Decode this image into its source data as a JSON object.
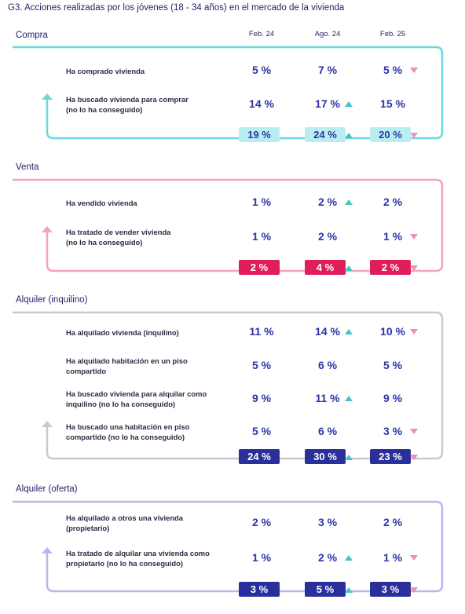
{
  "title": "G3. Acciones realizadas por los jóvenes (18 - 34 años) en el mercado de la vivienda",
  "colors": {
    "compra": "#6fd7da",
    "venta": "#f2a3bd",
    "inquilino": "#c9c9d2",
    "oferta": "#b8b8eb",
    "up_arrow": "#45c4c8",
    "down_arrow": "#ef8fb4",
    "value_text": "#2e33a8"
  },
  "chart_data": {
    "type": "table",
    "columns": [
      "Feb. 24",
      "Ago. 24",
      "Feb. 25"
    ],
    "sections": [
      {
        "title": "Compra",
        "rows": [
          {
            "label_lines": [
              "Ha comprado vivienda"
            ],
            "values": [
              "5 %",
              "7 %",
              "5 %"
            ],
            "trend": [
              "",
              "",
              "down"
            ]
          },
          {
            "label_lines": [
              "Ha buscado vivienda para comprar",
              "(no lo ha conseguido)"
            ],
            "values": [
              "14 %",
              "17 %",
              "15 %"
            ],
            "trend": [
              "",
              "up",
              ""
            ]
          }
        ],
        "totals": [
          "19 %",
          "24 %",
          "20 %"
        ],
        "total_trend": [
          "",
          "up",
          "down"
        ]
      },
      {
        "title": "Venta",
        "rows": [
          {
            "label_lines": [
              "Ha vendido vivienda"
            ],
            "values": [
              "1 %",
              "2 %",
              "2 %"
            ],
            "trend": [
              "",
              "up",
              ""
            ]
          },
          {
            "label_lines": [
              "Ha tratado de vender vivienda",
              "(no lo ha conseguido)"
            ],
            "values": [
              "1 %",
              "2 %",
              "1 %"
            ],
            "trend": [
              "",
              "",
              "down"
            ]
          }
        ],
        "totals": [
          "2 %",
          "4 %",
          "2 %"
        ],
        "total_trend": [
          "",
          "up",
          "down"
        ]
      },
      {
        "title": "Alquiler (inquilino)",
        "rows": [
          {
            "label_lines": [
              "Ha alquilado vivienda (inquilino)"
            ],
            "values": [
              "11 %",
              "14 %",
              "10 %"
            ],
            "trend": [
              "",
              "up",
              "down"
            ]
          },
          {
            "label_lines": [
              "Ha alquilado habitación en un piso",
              "compartido"
            ],
            "values": [
              "5 %",
              "6 %",
              "5 %"
            ],
            "trend": [
              "",
              "",
              ""
            ]
          },
          {
            "label_lines": [
              "Ha buscado vivienda para alquilar como",
              "inquilino (no lo ha conseguido)"
            ],
            "values": [
              "9 %",
              "11 %",
              "9 %"
            ],
            "trend": [
              "",
              "up",
              ""
            ]
          },
          {
            "label_lines": [
              "Ha buscado una habitación en piso",
              "compartido (no lo ha conseguido)"
            ],
            "values": [
              "5 %",
              "6 %",
              "3 %"
            ],
            "trend": [
              "",
              "",
              "down"
            ]
          }
        ],
        "totals": [
          "24 %",
          "30 %",
          "23 %"
        ],
        "total_trend": [
          "",
          "up",
          "down"
        ]
      },
      {
        "title": "Alquiler (oferta)",
        "rows": [
          {
            "label_lines": [
              "Ha alquilado a otros una vivienda",
              "(propietario)"
            ],
            "values": [
              "2 %",
              "3 %",
              "2 %"
            ],
            "trend": [
              "",
              "",
              ""
            ]
          },
          {
            "label_lines": [
              "Ha tratado de alquilar una vivienda como",
              "propietario (no lo ha conseguido)"
            ],
            "values": [
              "1 %",
              "2 %",
              "1 %"
            ],
            "trend": [
              "",
              "up",
              "down"
            ]
          }
        ],
        "totals": [
          "3 %",
          "5 %",
          "3 %"
        ],
        "total_trend": [
          "",
          "up",
          "down"
        ]
      }
    ]
  }
}
